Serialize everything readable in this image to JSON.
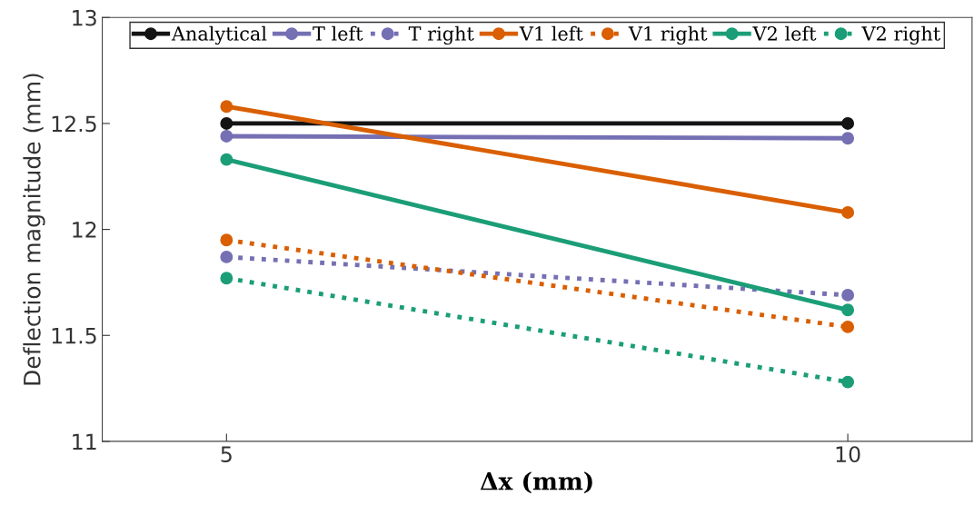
{
  "chart_data": {
    "type": "line",
    "xlabel": "Δx (mm)",
    "ylabel": "Deflection magnitude (mm)",
    "x": [
      5,
      10
    ],
    "series": [
      {
        "name": "Analytical",
        "color": "#141414",
        "values": [
          12.5,
          12.5
        ],
        "line_style": "solid"
      },
      {
        "name": "T left",
        "color": "#7570b3",
        "values": [
          12.44,
          12.43
        ],
        "line_style": "solid"
      },
      {
        "name": "T right",
        "color": "#7570b3",
        "values": [
          11.87,
          11.69
        ],
        "line_style": "dotted"
      },
      {
        "name": "V1 left",
        "color": "#d95f02",
        "values": [
          12.58,
          12.08
        ],
        "line_style": "solid"
      },
      {
        "name": "V1 right",
        "color": "#d95f02",
        "values": [
          11.95,
          11.54
        ],
        "line_style": "dotted"
      },
      {
        "name": "V2 left",
        "color": "#1b9e77",
        "values": [
          12.33,
          11.62
        ],
        "line_style": "solid"
      },
      {
        "name": "V2 right",
        "color": "#1b9e77",
        "values": [
          11.77,
          11.28
        ],
        "line_style": "dotted"
      }
    ],
    "xlim": [
      4,
      11
    ],
    "xticks": [
      5,
      10
    ],
    "ylim": [
      11,
      13
    ],
    "yticks": [
      11,
      11.5,
      12,
      12.5,
      13
    ],
    "grid": false,
    "legend": "top",
    "marker": "circle"
  }
}
